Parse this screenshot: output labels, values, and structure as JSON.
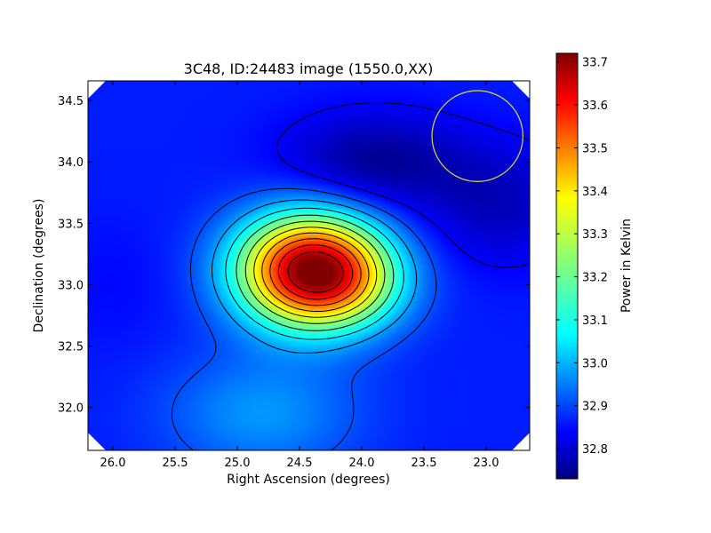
{
  "chart_data": {
    "type": "heatmap",
    "title": "3C48, ID:24483 image (1550.0,XX)",
    "xlabel": "Right Ascension (degrees)",
    "ylabel": "Declination (degrees)",
    "xlim": [
      26.2,
      22.65
    ],
    "ylim": [
      31.65,
      34.66
    ],
    "x_ticks": [
      26.0,
      25.5,
      25.0,
      24.5,
      24.0,
      23.5,
      23.0
    ],
    "x_tick_labels": [
      "26.0",
      "25.5",
      "25.0",
      "24.5",
      "24.0",
      "23.5",
      "23.0"
    ],
    "y_ticks": [
      32.0,
      32.5,
      33.0,
      33.5,
      34.0,
      34.5
    ],
    "y_tick_labels": [
      "32.0",
      "32.5",
      "33.0",
      "33.5",
      "34.0",
      "34.5"
    ],
    "colorbar": {
      "label": "Power in Kelvin",
      "range": [
        32.73,
        33.72
      ],
      "colormap": "jet",
      "ticks": [
        32.8,
        32.9,
        33.0,
        33.1,
        33.2,
        33.3,
        33.4,
        33.5,
        33.6,
        33.7
      ],
      "tick_labels": [
        "32.8",
        "32.9",
        "33.0",
        "33.1",
        "33.2",
        "33.3",
        "33.4",
        "33.5",
        "33.6",
        "33.7"
      ]
    },
    "peak": {
      "ra": 24.4,
      "dec": 33.12,
      "value": 33.72
    },
    "minimum": {
      "ra": 23.9,
      "dec": 34.0,
      "value": 32.75
    },
    "background_level": 32.88,
    "secondary_feature": {
      "ra": 24.8,
      "dec": 31.95,
      "value": 33.0
    },
    "contour_levels": [
      32.85,
      32.93,
      33.01,
      33.09,
      33.17,
      33.25,
      33.33,
      33.41,
      33.49,
      33.57,
      33.65
    ],
    "beam_circle": {
      "ra": 23.07,
      "dec": 34.21,
      "radius_deg": 0.37,
      "color": "#cccc44"
    },
    "contour_color": "#000000"
  }
}
